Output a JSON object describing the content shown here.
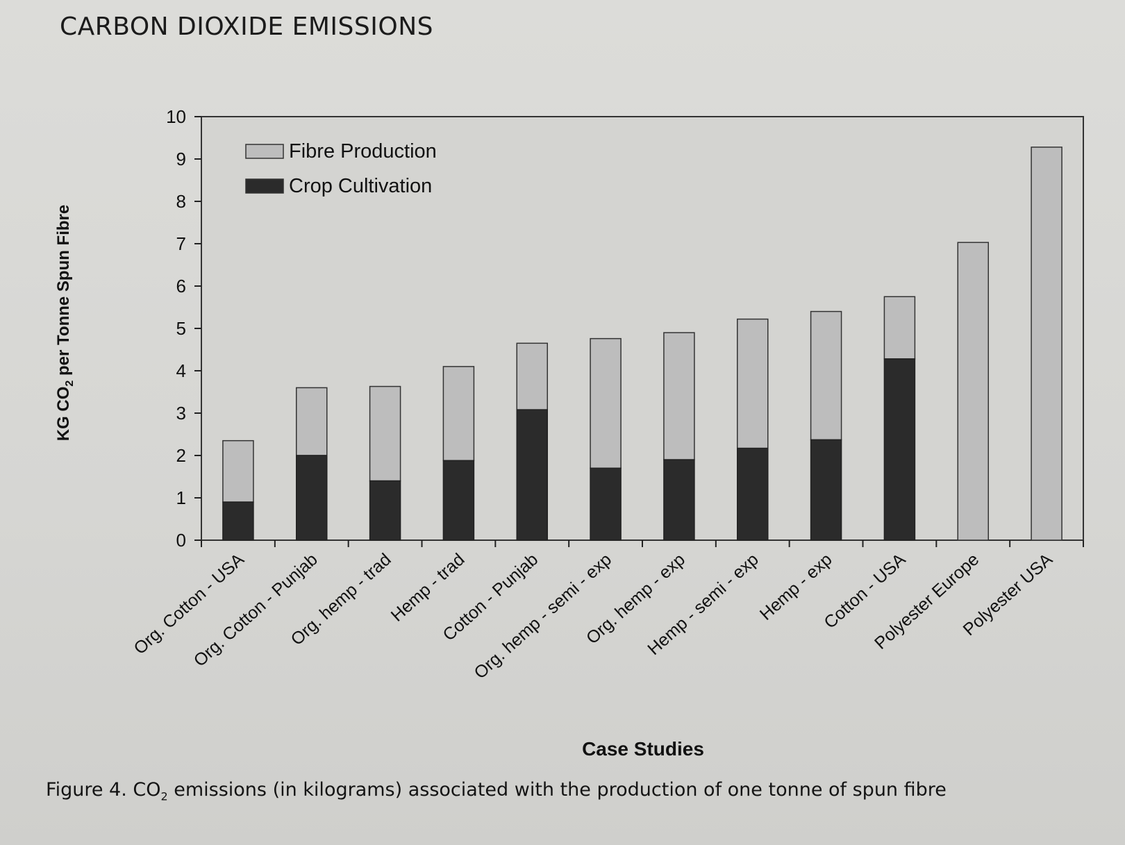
{
  "page": {
    "heading": "CARBON DIOXIDE EMISSIONS",
    "caption_prefix": "Figure 4. CO",
    "caption_sub": "2",
    "caption_suffix": " emissions (in kilograms) associated with the production of one tonne of spun fibre"
  },
  "chart_data": {
    "type": "bar",
    "stacked": true,
    "title": "",
    "xlabel": "Case Studies",
    "ylabel_prefix": "KG CO",
    "ylabel_sub": "2",
    "ylabel_suffix": " per Tonne Spun Fibre",
    "ylim": [
      0,
      10
    ],
    "yticks": [
      0,
      1,
      2,
      3,
      4,
      5,
      6,
      7,
      8,
      9,
      10
    ],
    "grid": false,
    "legend_position": "top-left",
    "categories": [
      "Org. Cotton - USA",
      "Org. Cotton - Punjab",
      "Org. hemp - trad",
      "Hemp - trad",
      "Cotton - Punjab",
      "Org. hemp - semi - exp",
      "Org. hemp - exp",
      "Hemp - semi - exp",
      "Hemp - exp",
      "Cotton - USA",
      "Polyester Europe",
      "Polyester USA"
    ],
    "series": [
      {
        "name": "Crop Cultivation",
        "color": "#2b2b2b",
        "values": [
          0.9,
          2.0,
          1.4,
          1.88,
          3.08,
          1.7,
          1.9,
          2.17,
          2.37,
          4.28,
          0,
          0
        ]
      },
      {
        "name": "Fibre Production",
        "color": "#bdbdbd",
        "values": [
          1.45,
          1.6,
          2.23,
          2.22,
          1.57,
          3.06,
          3.0,
          3.05,
          3.03,
          1.47,
          7.03,
          9.28
        ]
      }
    ],
    "legend_order": [
      "Fibre Production",
      "Crop Cultivation"
    ]
  }
}
